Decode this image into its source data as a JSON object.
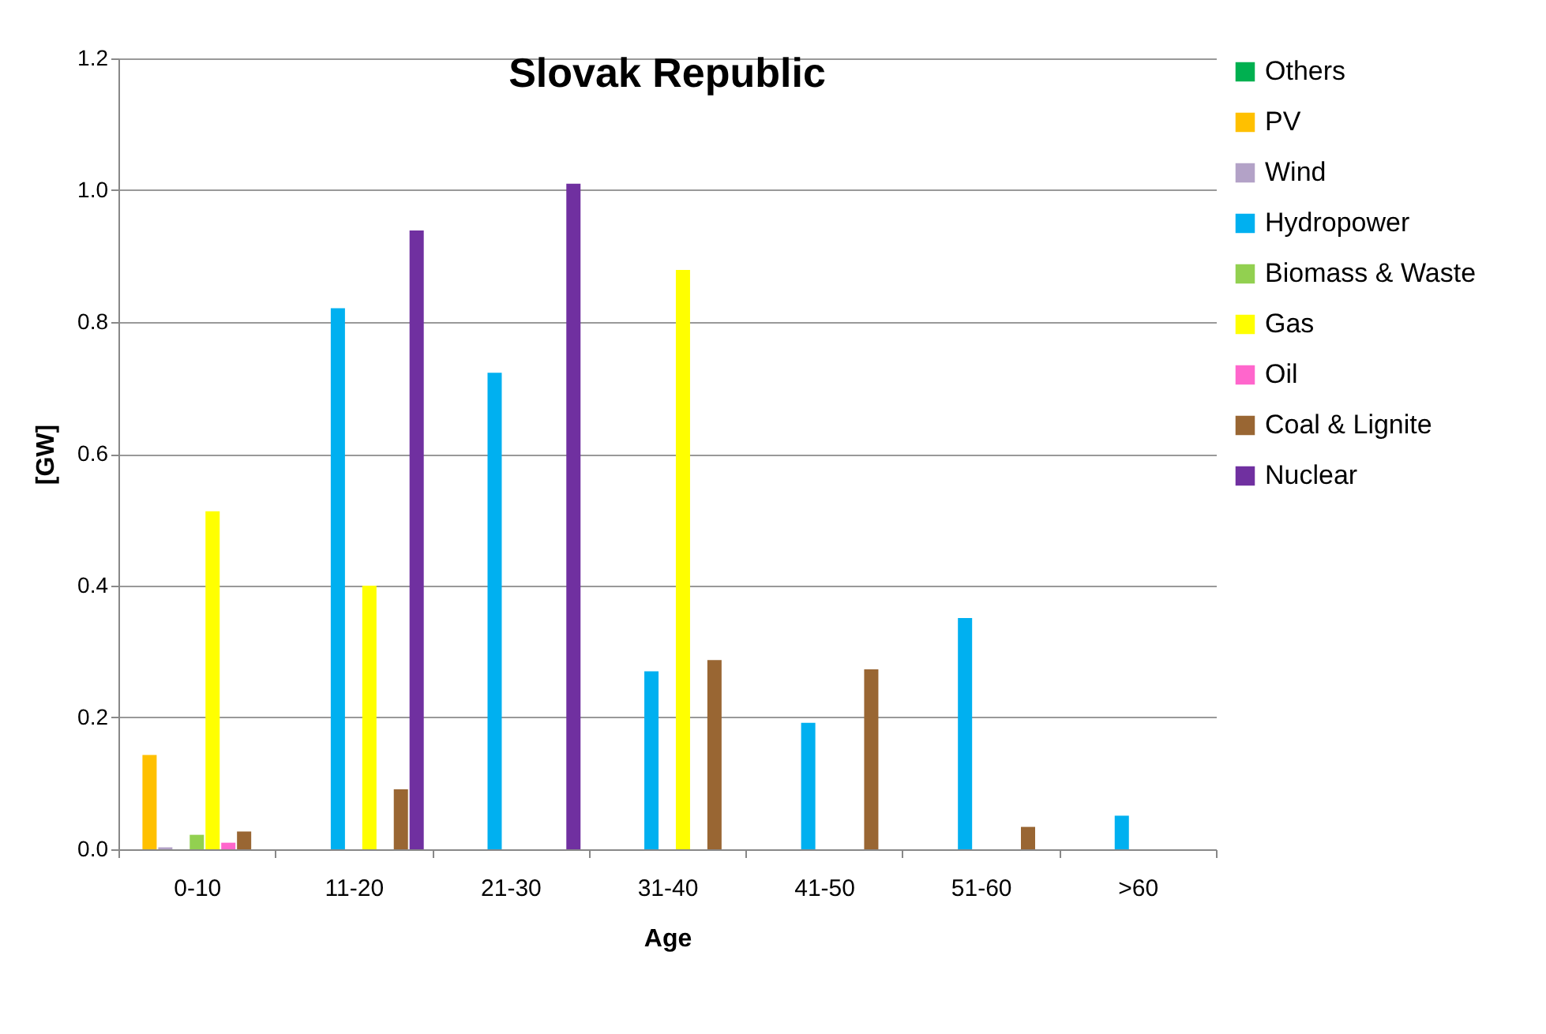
{
  "chart_data": {
    "type": "bar",
    "title": "Slovak Republic",
    "xlabel": "Age",
    "ylabel": "[GW]",
    "categories": [
      "0-10",
      "11-20",
      "21-30",
      "31-40",
      "41-50",
      "51-60",
      ">60"
    ],
    "series": [
      {
        "name": "Others",
        "color": "#00b050",
        "values": [
          null,
          null,
          null,
          null,
          null,
          null,
          null
        ]
      },
      {
        "name": "PV",
        "color": "#ffc000",
        "values": [
          0.143,
          null,
          null,
          null,
          null,
          null,
          null
        ]
      },
      {
        "name": "Wind",
        "color": "#b3a2c7",
        "values": [
          0.003,
          null,
          null,
          null,
          null,
          null,
          null
        ]
      },
      {
        "name": "Hydropower",
        "color": "#00b0f0",
        "values": [
          null,
          0.821,
          0.723,
          0.27,
          0.192,
          0.351,
          0.051
        ]
      },
      {
        "name": "Biomass & Waste",
        "color": "#92d050",
        "values": [
          0.022,
          null,
          null,
          null,
          null,
          null,
          null
        ]
      },
      {
        "name": "Gas",
        "color": "#ffff00",
        "values": [
          0.513,
          0.4,
          null,
          0.879,
          null,
          null,
          null
        ]
      },
      {
        "name": "Oil",
        "color": "#ff66cc",
        "values": [
          0.01,
          null,
          null,
          null,
          null,
          null,
          null
        ]
      },
      {
        "name": "Coal & Lignite",
        "color": "#996633",
        "values": [
          0.027,
          0.091,
          null,
          0.287,
          0.273,
          0.034,
          null
        ]
      },
      {
        "name": "Nuclear",
        "color": "#7030a0",
        "values": [
          null,
          0.939,
          1.01,
          null,
          null,
          null,
          null
        ]
      }
    ],
    "ylim": [
      0,
      1.2
    ],
    "yticks": [
      {
        "value": 0,
        "label": "0.0"
      },
      {
        "value": 0.2,
        "label": "0.2"
      },
      {
        "value": 0.4,
        "label": "0.4"
      },
      {
        "value": 0.6,
        "label": "0.6"
      },
      {
        "value": 0.8,
        "label": "0.8"
      },
      {
        "value": 1,
        "label": "1.0"
      },
      {
        "value": 1.2,
        "label": "1.2"
      }
    ],
    "grid": "y",
    "legend": "right"
  }
}
